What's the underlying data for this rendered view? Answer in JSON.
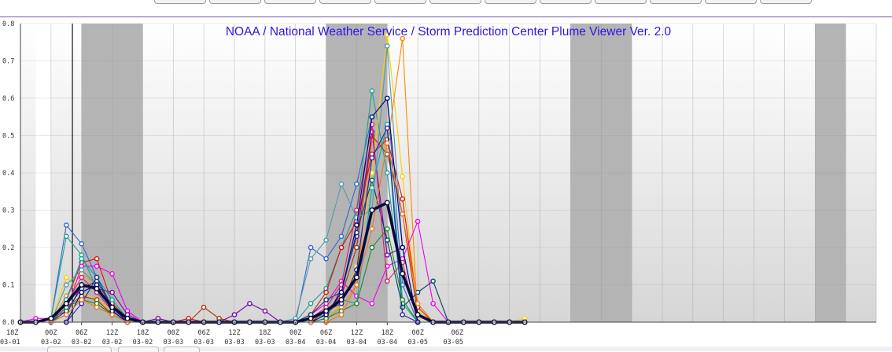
{
  "window": {
    "tab_count": 12
  },
  "chart_data": {
    "type": "line",
    "title": "NOAA / National Weather Service / Storm Prediction Center Plume Viewer Ver. 2.0",
    "ylim": [
      0,
      0.8
    ],
    "y_ticks": [
      "0.0",
      "0.1",
      "0.2",
      "0.3",
      "0.4",
      "0.5",
      "0.6",
      "0.7",
      "0.8"
    ],
    "x_tick_labels": [
      [
        "18Z",
        "03-01"
      ],
      [
        "00Z",
        "03-02"
      ],
      [
        "06Z",
        "03-02"
      ],
      [
        "12Z",
        "03-02"
      ],
      [
        "18Z",
        "03-02"
      ],
      [
        "00Z",
        "03-03"
      ],
      [
        "06Z",
        "03-03"
      ],
      [
        "12Z",
        "03-03"
      ],
      [
        "18Z",
        "03-03"
      ],
      [
        "00Z",
        "03-04"
      ],
      [
        "06Z",
        "03-04"
      ],
      [
        "12Z",
        "03-04"
      ],
      [
        "18Z",
        "03-04"
      ],
      [
        "00Z",
        "03-05"
      ],
      [
        "06Z",
        "03-05"
      ]
    ],
    "x_step_hours": 3,
    "night_bands_hours": [
      [
        6,
        18
      ],
      [
        54,
        66
      ],
      [
        102,
        114
      ],
      [
        150,
        156
      ]
    ],
    "highlight_column_hours": [
      -3,
      0
    ],
    "current_time_hour": 4.2,
    "grid": true,
    "background_bands_color": "#b4b4b4",
    "mean_series": {
      "name": "",
      "color": "#0a0a3c",
      "values": [
        0.0,
        0.0,
        0.01,
        0.05,
        0.1,
        0.09,
        0.04,
        0.01,
        0.0,
        0.0,
        0.0,
        0.0,
        0.0,
        0.0,
        0.0,
        0.0,
        0.0,
        0.0,
        0.0,
        0.01,
        0.03,
        0.06,
        0.12,
        0.3,
        0.32,
        0.13,
        0.02,
        0.0,
        0.0,
        0.0,
        0.0,
        0.0,
        0.0,
        0.0
      ]
    },
    "series": [
      {
        "color": "#3366cc",
        "values": [
          0.0,
          0.0,
          0.01,
          0.26,
          0.21,
          0.12,
          0.04,
          0.01,
          0.0,
          0.0,
          0.0,
          0.0,
          0.0,
          0.0,
          0.0,
          0.0,
          0.0,
          0.0,
          0.0,
          0.2,
          0.17,
          0.23,
          0.37,
          0.55,
          0.6,
          0.1,
          0.0,
          0.0,
          0.0,
          0.0,
          0.0,
          0.0,
          0.0,
          0.0
        ]
      },
      {
        "color": "#20a090",
        "values": [
          0.0,
          0.0,
          0.01,
          0.23,
          0.18,
          0.09,
          0.05,
          0.01,
          0.0,
          0.0,
          0.0,
          0.0,
          0.0,
          0.0,
          0.0,
          0.0,
          0.0,
          0.0,
          0.0,
          0.05,
          0.09,
          0.2,
          0.3,
          0.62,
          0.4,
          0.05,
          0.0,
          0.0,
          0.0,
          0.0,
          0.0,
          0.0,
          0.0,
          0.0
        ]
      },
      {
        "color": "#ffcc00",
        "values": [
          0.0,
          0.0,
          0.0,
          0.12,
          0.08,
          0.06,
          0.03,
          0.0,
          0.0,
          0.0,
          0.0,
          0.0,
          0.0,
          0.0,
          0.0,
          0.0,
          0.0,
          0.0,
          0.0,
          0.0,
          0.02,
          0.05,
          0.15,
          0.4,
          0.77,
          0.39,
          0.03,
          0.0,
          0.0,
          0.0,
          0.0,
          0.0,
          0.0,
          0.01
        ]
      },
      {
        "color": "#ff8800",
        "values": [
          0.0,
          0.0,
          0.0,
          0.07,
          0.13,
          0.1,
          0.04,
          0.0,
          0.0,
          0.0,
          0.0,
          0.0,
          0.0,
          0.0,
          0.0,
          0.0,
          0.0,
          0.0,
          0.0,
          0.0,
          0.01,
          0.04,
          0.1,
          0.49,
          0.47,
          0.76,
          0.0,
          0.0,
          0.0,
          0.0,
          0.0,
          0.0,
          0.0,
          0.0
        ]
      },
      {
        "color": "#dd1111",
        "values": [
          0.0,
          0.0,
          0.0,
          0.06,
          0.16,
          0.17,
          0.05,
          0.01,
          0.0,
          0.0,
          0.0,
          0.01,
          0.0,
          0.0,
          0.0,
          0.0,
          0.0,
          0.0,
          0.0,
          0.02,
          0.08,
          0.2,
          0.27,
          0.45,
          0.49,
          0.33,
          0.04,
          0.0,
          0.0,
          0.0,
          0.0,
          0.0,
          0.0,
          0.0
        ]
      },
      {
        "color": "#aa3300",
        "values": [
          0.0,
          0.0,
          0.0,
          0.04,
          0.07,
          0.06,
          0.02,
          0.0,
          0.0,
          0.0,
          0.0,
          0.0,
          0.04,
          0.01,
          0.0,
          0.0,
          0.0,
          0.0,
          0.0,
          0.0,
          0.03,
          0.07,
          0.2,
          0.5,
          0.45,
          0.29,
          0.02,
          0.0,
          0.0,
          0.0,
          0.0,
          0.0,
          0.0,
          0.0
        ]
      },
      {
        "color": "#ee00ee",
        "values": [
          0.0,
          0.01,
          0.01,
          0.03,
          0.15,
          0.15,
          0.13,
          0.03,
          0.0,
          0.0,
          0.0,
          0.0,
          0.0,
          0.0,
          0.0,
          0.0,
          0.0,
          0.0,
          0.0,
          0.02,
          0.05,
          0.11,
          0.07,
          0.05,
          0.15,
          0.17,
          0.27,
          0.05,
          0.0,
          0.0,
          0.0,
          0.0,
          0.0,
          0.0
        ]
      },
      {
        "color": "#7700aa",
        "values": [
          0.0,
          0.0,
          0.0,
          0.02,
          0.1,
          0.09,
          0.08,
          0.02,
          0.0,
          0.01,
          0.0,
          0.0,
          0.0,
          0.0,
          0.02,
          0.05,
          0.03,
          0.0,
          0.0,
          0.0,
          0.01,
          0.09,
          0.23,
          0.51,
          0.18,
          0.2,
          0.0,
          0.0,
          0.0,
          0.0,
          0.0,
          0.0,
          0.0,
          0.0
        ]
      },
      {
        "color": "#004466",
        "values": [
          0.0,
          0.0,
          0.0,
          0.03,
          0.09,
          0.11,
          0.04,
          0.0,
          0.0,
          0.0,
          0.0,
          0.0,
          0.0,
          0.0,
          0.0,
          0.0,
          0.0,
          0.0,
          0.0,
          0.02,
          0.06,
          0.08,
          0.24,
          0.38,
          0.22,
          0.04,
          0.08,
          0.11,
          0.0,
          0.0,
          0.0,
          0.0,
          0.0,
          0.0
        ]
      },
      {
        "color": "#cc2266",
        "values": [
          0.0,
          0.0,
          0.0,
          0.05,
          0.12,
          0.08,
          0.03,
          0.0,
          0.0,
          0.0,
          0.0,
          0.0,
          0.0,
          0.0,
          0.0,
          0.0,
          0.0,
          0.0,
          0.0,
          0.01,
          0.04,
          0.1,
          0.3,
          0.53,
          0.11,
          0.16,
          0.0,
          0.0,
          0.0,
          0.0,
          0.0,
          0.0,
          0.0,
          0.0
        ]
      },
      {
        "color": "#00aaaa",
        "values": [
          0.0,
          0.0,
          0.0,
          0.06,
          0.17,
          0.12,
          0.06,
          0.01,
          0.0,
          0.0,
          0.0,
          0.0,
          0.0,
          0.0,
          0.0,
          0.0,
          0.0,
          0.0,
          0.0,
          0.01,
          0.02,
          0.06,
          0.05,
          0.36,
          0.53,
          0.06,
          0.0,
          0.0,
          0.0,
          0.0,
          0.0,
          0.0,
          0.0,
          0.0
        ]
      },
      {
        "color": "#5599aa",
        "values": [
          0.0,
          0.0,
          0.0,
          0.1,
          0.14,
          0.1,
          0.03,
          0.01,
          0.0,
          0.0,
          0.0,
          0.0,
          0.0,
          0.0,
          0.0,
          0.0,
          0.0,
          0.0,
          0.01,
          0.17,
          0.22,
          0.37,
          0.28,
          0.3,
          0.74,
          0.2,
          0.0,
          0.0,
          0.0,
          0.0,
          0.0,
          0.0,
          0.0,
          0.0
        ]
      },
      {
        "color": "#2222aa",
        "values": [
          0.0,
          0.0,
          0.0,
          0.0,
          0.05,
          0.12,
          0.04,
          0.0,
          0.0,
          0.0,
          0.0,
          0.0,
          0.0,
          0.0,
          0.0,
          0.0,
          0.0,
          0.0,
          0.0,
          0.01,
          0.03,
          0.05,
          0.14,
          0.44,
          0.52,
          0.02,
          0.0,
          0.0,
          0.0,
          0.0,
          0.0,
          0.0,
          0.0,
          0.0
        ]
      },
      {
        "color": "#228822",
        "values": [
          0.0,
          0.0,
          0.0,
          0.04,
          0.06,
          0.05,
          0.02,
          0.0,
          0.0,
          0.0,
          0.0,
          0.0,
          0.0,
          0.0,
          0.0,
          0.0,
          0.0,
          0.0,
          0.0,
          0.0,
          0.01,
          0.03,
          0.05,
          0.2,
          0.25,
          0.06,
          0.0,
          0.0,
          0.0,
          0.0,
          0.0,
          0.0,
          0.0,
          0.0
        ]
      },
      {
        "color": "#000080",
        "values": [
          0.0,
          0.0,
          0.0,
          0.0,
          0.08,
          0.1,
          0.03,
          0.0,
          0.0,
          0.0,
          0.0,
          0.0,
          0.0,
          0.0,
          0.0,
          0.0,
          0.0,
          0.0,
          0.0,
          0.0,
          0.02,
          0.08,
          0.26,
          0.55,
          0.6,
          0.2,
          0.0,
          0.0,
          0.0,
          0.0,
          0.0,
          0.0,
          0.0,
          0.0
        ]
      },
      {
        "color": "#ee7722",
        "values": [
          0.0,
          0.0,
          0.0,
          0.02,
          0.06,
          0.04,
          0.02,
          0.0,
          0.0,
          0.0,
          0.0,
          0.0,
          0.0,
          0.0,
          0.0,
          0.0,
          0.0,
          0.0,
          0.0,
          0.0,
          0.0,
          0.02,
          0.1,
          0.25,
          0.48,
          0.29,
          0.05,
          0.0,
          0.0,
          0.0,
          0.0,
          0.0,
          0.0,
          0.0
        ]
      }
    ]
  }
}
